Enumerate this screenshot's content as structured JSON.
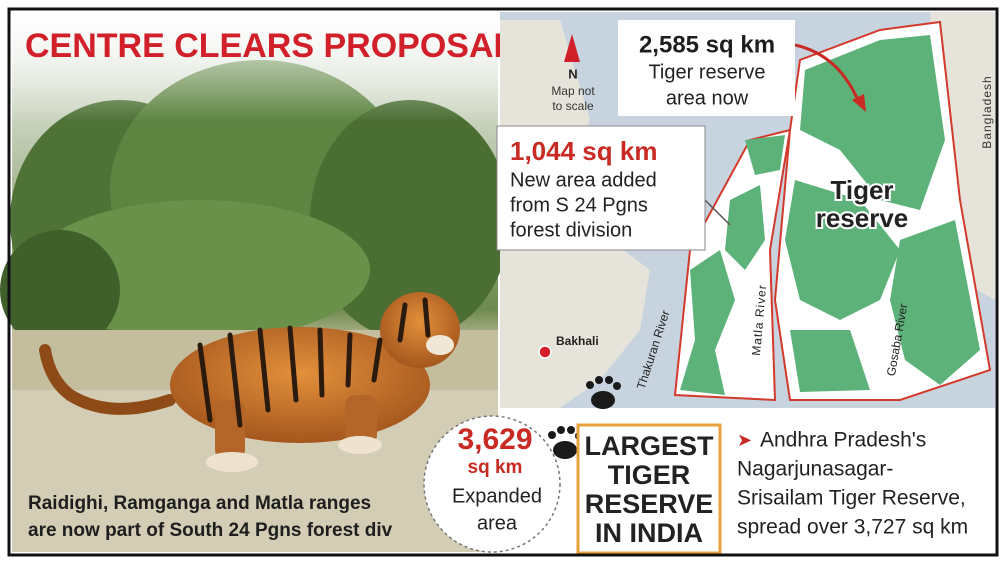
{
  "header": {
    "title": "CENTRE CLEARS PROPOSAL"
  },
  "photo": {
    "caption": [
      "Raidighi, Ramganga and Matla ranges",
      "are now part of South 24 Pgns forest div"
    ]
  },
  "map": {
    "north": "N",
    "scale_note": [
      "Map not",
      "to scale"
    ],
    "current_area": {
      "value": "2,585 sq km",
      "text": [
        "Tiger reserve",
        "area now"
      ]
    },
    "new_area": {
      "value": "1,044 sq km",
      "text": [
        "New area added",
        "from S 24 Pgns",
        "forest division"
      ]
    },
    "region_label": [
      "Tiger",
      "reserve"
    ],
    "country": "Bangladesh",
    "town": "Bakhali",
    "rivers": [
      "Thakuran River",
      "Matla River",
      "Gosaba River"
    ]
  },
  "expanded": {
    "value": "3,629",
    "unit": "sq km",
    "text": [
      "Expanded",
      "area"
    ]
  },
  "badge": [
    "LARGEST",
    "TIGER",
    "RESERVE",
    "IN INDIA"
  ],
  "note": {
    "marker": "➤",
    "lines": [
      "Andhra Pradesh's",
      "Nagarjunasagar-",
      "Srisailam Tiger Reserve,",
      "spread over 3,727 sq km"
    ]
  }
}
